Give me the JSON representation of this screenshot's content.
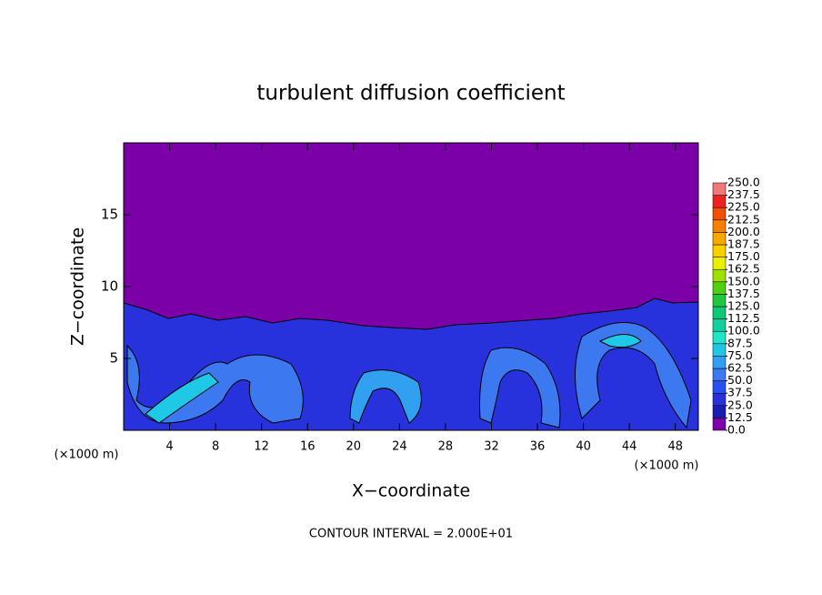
{
  "chart_data": {
    "type": "contour",
    "title": "turbulent diffusion coefficient",
    "xlabel": "X−coordinate",
    "ylabel": "Z−coordinate",
    "x_units": "(×1000 m)",
    "footnote": "CONTOUR INTERVAL = 2.000E+01",
    "xlim": [
      0,
      50
    ],
    "xticks": [
      4,
      8,
      12,
      16,
      20,
      24,
      28,
      32,
      36,
      40,
      44,
      48
    ],
    "ylim": [
      0,
      20
    ],
    "yticks": [
      5,
      10,
      15
    ],
    "colorbar": {
      "ticks": [
        {
          "value": 0,
          "label": "0.0"
        },
        12.5,
        {
          "value": 25,
          "label": "25.0"
        },
        37.5,
        {
          "value": 50,
          "label": "50.0"
        },
        62.5,
        {
          "value": 75,
          "label": "75.0"
        },
        87.5,
        {
          "value": 100,
          "label": "100.0"
        },
        112.5,
        {
          "value": 125,
          "label": "125.0"
        },
        137.5,
        {
          "value": 150,
          "label": "150.0"
        },
        162.5,
        {
          "value": 175,
          "label": "175.0"
        },
        187.5,
        {
          "value": 200,
          "label": "200.0"
        },
        212.5,
        {
          "value": 225,
          "label": "225.0"
        },
        237.5,
        {
          "value": 250,
          "label": "250.0"
        }
      ],
      "colors": [
        "#7b00a8",
        "#1c1cb4",
        "#2832dc",
        "#2850f0",
        "#3c78f0",
        "#32a0f0",
        "#20c8e8",
        "#20e6c8",
        "#10d0a0",
        "#10c878",
        "#20c840",
        "#50d010",
        "#a0e000",
        "#e8f000",
        "#f8d000",
        "#f8a800",
        "#f88000",
        "#f05000",
        "#f02020",
        "#f07878"
      ]
    }
  }
}
